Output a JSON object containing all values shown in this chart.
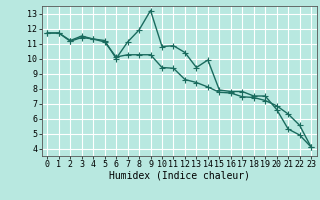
{
  "title": "",
  "xlabel": "Humidex (Indice chaleur)",
  "bg_color": "#b8e8e0",
  "major_grid_color": "#ffffff",
  "minor_grid_color": "#e8b8b8",
  "line_color": "#1a6b5e",
  "line1_x": [
    0,
    1,
    2,
    3,
    4,
    5,
    6,
    7,
    8,
    9,
    10,
    11,
    12,
    13,
    14,
    15,
    16,
    17,
    18,
    19,
    20,
    21,
    22,
    23
  ],
  "line1_y": [
    11.7,
    11.7,
    11.2,
    11.5,
    11.3,
    11.2,
    10.0,
    11.1,
    11.9,
    13.2,
    10.8,
    10.85,
    10.4,
    9.4,
    9.9,
    7.9,
    7.8,
    7.8,
    7.5,
    7.5,
    6.6,
    5.3,
    4.9,
    4.1
  ],
  "line2_x": [
    0,
    1,
    2,
    3,
    4,
    5,
    6,
    7,
    8,
    9,
    10,
    11,
    12,
    13,
    14,
    15,
    16,
    17,
    18,
    19,
    20,
    21,
    22,
    23
  ],
  "line2_y": [
    11.7,
    11.7,
    11.15,
    11.4,
    11.3,
    11.1,
    10.1,
    10.25,
    10.25,
    10.25,
    9.4,
    9.35,
    8.6,
    8.4,
    8.1,
    7.75,
    7.7,
    7.45,
    7.4,
    7.2,
    6.85,
    6.3,
    5.55,
    4.1
  ],
  "xlim": [
    -0.5,
    23.5
  ],
  "ylim": [
    3.5,
    13.5
  ],
  "yticks": [
    4,
    5,
    6,
    7,
    8,
    9,
    10,
    11,
    12,
    13
  ],
  "xticks": [
    0,
    1,
    2,
    3,
    4,
    5,
    6,
    7,
    8,
    9,
    10,
    11,
    12,
    13,
    14,
    15,
    16,
    17,
    18,
    19,
    20,
    21,
    22,
    23
  ],
  "marker": "+",
  "markersize": 4,
  "linewidth": 1.0,
  "tick_font_size": 6,
  "label_font_size": 7
}
